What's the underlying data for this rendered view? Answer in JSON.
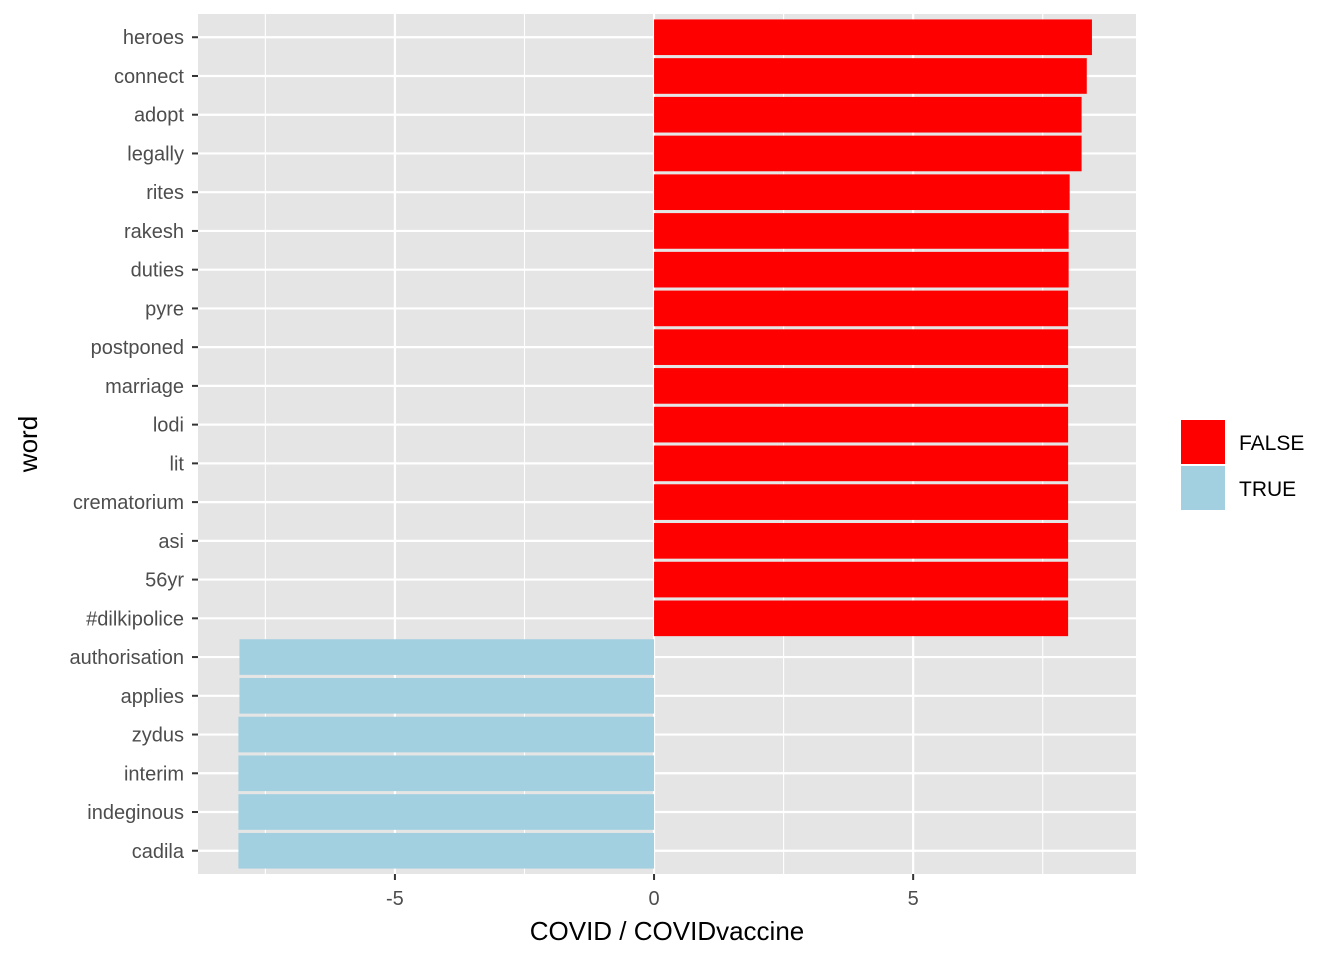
{
  "chart_data": {
    "type": "bar",
    "orientation": "horizontal",
    "xlabel": "COVID / COVIDvaccine",
    "ylabel": "word",
    "xlim": [
      -8.8,
      9.3
    ],
    "x_ticks": [
      -5,
      0,
      5
    ],
    "x_tick_labels": [
      "-5",
      "0",
      "5"
    ],
    "grid": true,
    "legend_position": "right",
    "legend": [
      {
        "key": "FALSE",
        "label": "FALSE",
        "color": "#ff0000"
      },
      {
        "key": "TRUE",
        "label": "TRUE",
        "color": "#a2d0e0"
      }
    ],
    "categories": [
      "heroes",
      "connect",
      "adopt",
      "legally",
      "rites",
      "rakesh",
      "duties",
      "pyre",
      "postponed",
      "marriage",
      "lodi",
      "lit",
      "crematorium",
      "asi",
      "56yr",
      "#dilkipolice",
      "authorisation",
      "applies",
      "zydus",
      "interim",
      "indeginous",
      "cadila"
    ],
    "values": [
      8.45,
      8.35,
      8.25,
      8.25,
      8.02,
      8.0,
      8.0,
      7.99,
      7.99,
      7.99,
      7.99,
      7.99,
      7.99,
      7.99,
      7.99,
      7.99,
      -8.0,
      -8.0,
      -8.02,
      -8.02,
      -8.02,
      -8.02
    ],
    "groups": [
      "FALSE",
      "FALSE",
      "FALSE",
      "FALSE",
      "FALSE",
      "FALSE",
      "FALSE",
      "FALSE",
      "FALSE",
      "FALSE",
      "FALSE",
      "FALSE",
      "FALSE",
      "FALSE",
      "FALSE",
      "FALSE",
      "TRUE",
      "TRUE",
      "TRUE",
      "TRUE",
      "TRUE",
      "TRUE"
    ],
    "colors": {
      "panel": "#e5e5e5",
      "grid": "#ffffff",
      "tick": "#333333",
      "tick_label": "#4d4d4d"
    }
  }
}
